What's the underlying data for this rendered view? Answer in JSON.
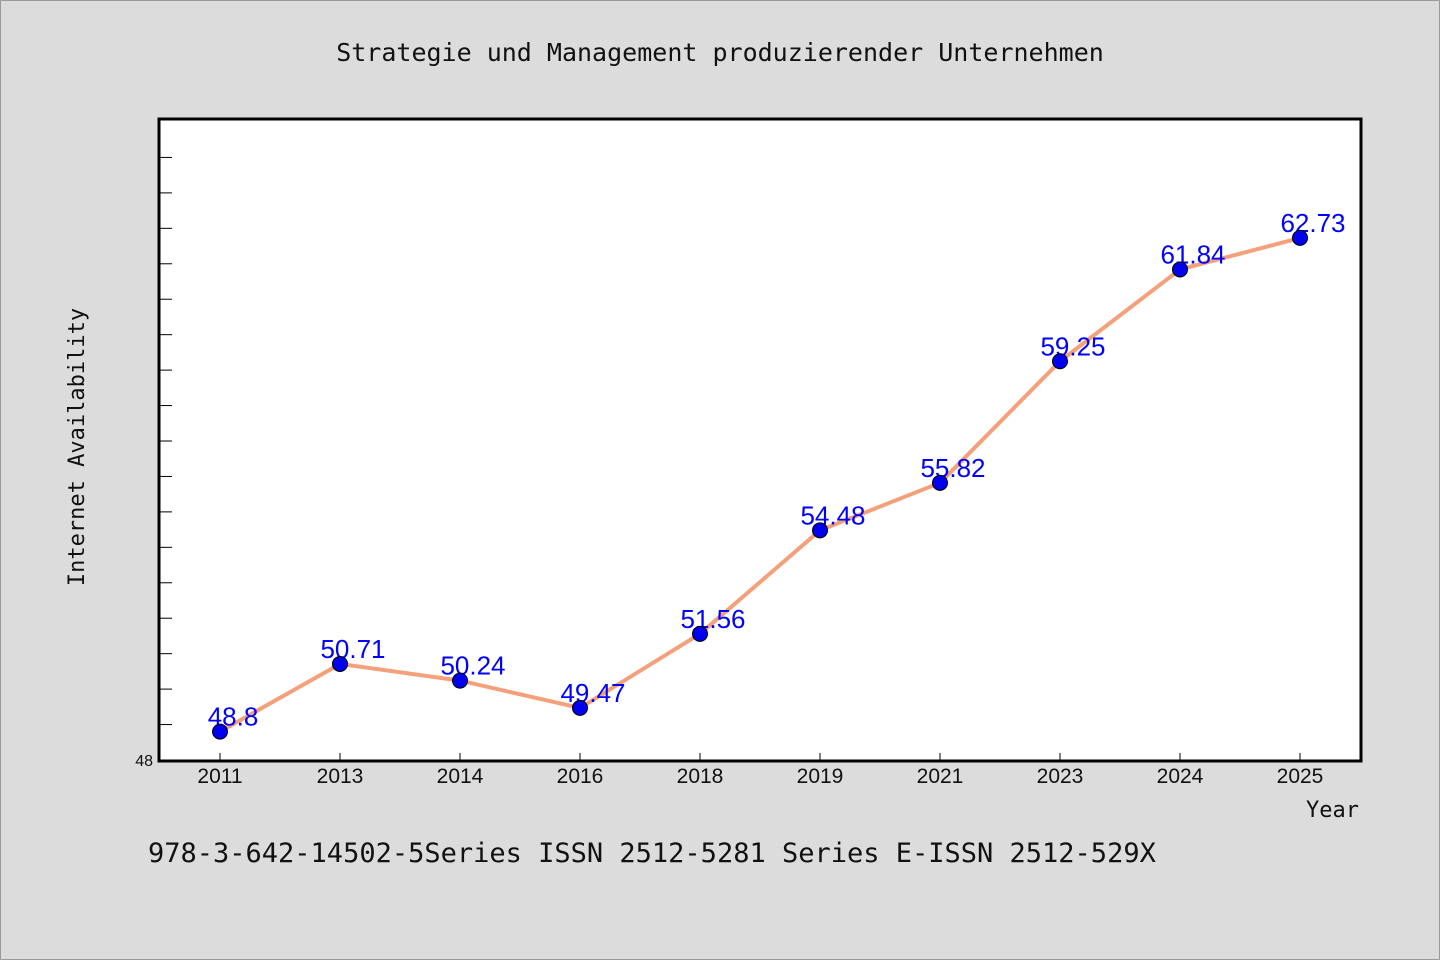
{
  "chart_data": {
    "type": "line",
    "title": "Strategie und Management produzierender Unternehmen",
    "xlabel": "Year",
    "ylabel": "Internet Availability",
    "categories": [
      "2011",
      "2013",
      "2014",
      "2016",
      "2018",
      "2019",
      "2021",
      "2023",
      "2024",
      "2025"
    ],
    "series": [
      {
        "values": [
          48.8,
          50.71,
          50.24,
          49.47,
          51.56,
          54.48,
          55.82,
          59.25,
          61.84,
          62.73
        ],
        "labels": [
          "48.8",
          "50.71",
          "50.24",
          "49.47",
          "51.56",
          "54.48",
          "55.82",
          "59.25",
          "61.84",
          "62.73"
        ],
        "line_color": "#f4a07a",
        "marker_color": "#0000ee",
        "label_color": "#0000ff"
      }
    ],
    "y_tick_label": "48",
    "ylim": [
      48,
      66
    ],
    "grid": false,
    "legend": "none",
    "background": "#dcdcdc",
    "plot_background": "#ffffff"
  },
  "footer": {
    "text": "978-3-642-14502-5Series ISSN 2512-5281 Series E-ISSN 2512-529X"
  }
}
